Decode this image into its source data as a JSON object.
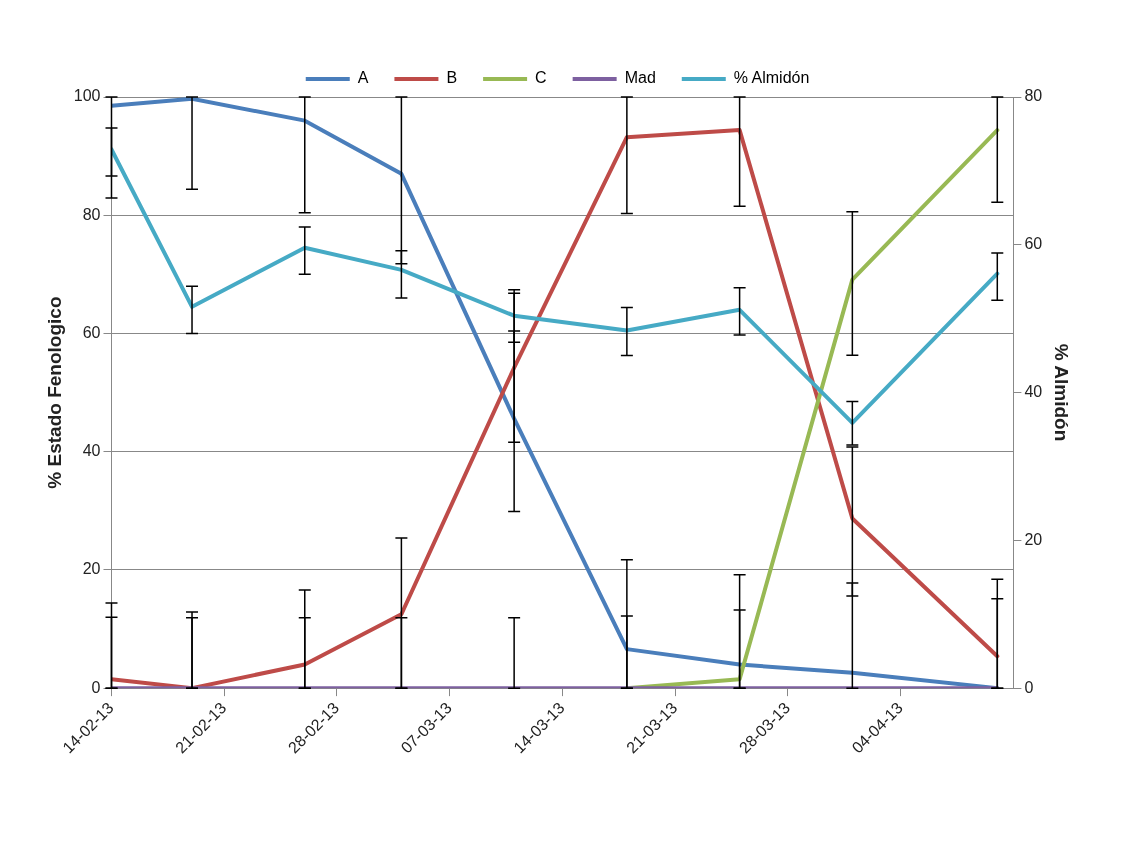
{
  "chart_data": {
    "type": "line",
    "ylabel": "% Estado Fenologico",
    "y2label": "% Almidón",
    "x": [
      "--02-14",
      "--02-19",
      "--02-26",
      "--03-04",
      "--03-11",
      "--03-18",
      "--03-25",
      "--04-01",
      "--04-10"
    ],
    "xlim": [
      "--02-14",
      "--04-11"
    ],
    "xticks": [
      {
        "value": "--02-14",
        "label": "14-02-13"
      },
      {
        "value": "--02-21",
        "label": "21-02-13"
      },
      {
        "value": "--02-28",
        "label": "28-02-13"
      },
      {
        "value": "--03-07",
        "label": "07-03-13"
      },
      {
        "value": "--03-14",
        "label": "14-03-13"
      },
      {
        "value": "--03-21",
        "label": "21-03-13"
      },
      {
        "value": "--03-28",
        "label": "28-03-13"
      },
      {
        "value": "--04-04",
        "label": "04-04-13"
      }
    ],
    "ylim": [
      0,
      100
    ],
    "yticks": [
      0,
      20,
      40,
      60,
      80,
      100
    ],
    "y2lim": [
      0,
      80
    ],
    "y2ticks": [
      0,
      20,
      40,
      60,
      80
    ],
    "grid": "y",
    "legend": "top",
    "marker": "none",
    "line_style": "solid",
    "series": [
      {
        "name": "A",
        "color": "#4a7ebb",
        "values": [
          98.5,
          99.7,
          96,
          87,
          45.6,
          6.6,
          4,
          2.6,
          0
        ],
        "errors": [
          [
            82.9,
            100
          ],
          [
            84.4,
            100
          ],
          [
            80.4,
            100
          ],
          [
            71.8,
            100
          ],
          [
            29.9,
            60.4
          ],
          [
            0,
            21.7
          ],
          [
            0,
            19.2
          ],
          [
            0,
            17.8
          ],
          [
            0,
            15.1
          ]
        ]
      },
      {
        "name": "B",
        "color": "#be4b48",
        "values": [
          1.5,
          0,
          4,
          12.5,
          54.2,
          93.2,
          94.4,
          28.7,
          5.4
        ],
        "errors": [
          [
            0,
            14.4
          ],
          [
            0,
            12.9
          ],
          [
            0,
            16.6
          ],
          [
            0,
            25.4
          ],
          [
            41.6,
            66.8
          ],
          [
            80.3,
            100
          ],
          [
            81.5,
            100
          ],
          [
            15.6,
            40.8
          ],
          [
            0,
            18.4
          ]
        ]
      },
      {
        "name": "C",
        "color": "#98b954",
        "values": [
          null,
          null,
          null,
          null,
          null,
          0,
          1.5,
          69.1,
          94.4
        ],
        "errors": [
          null,
          null,
          null,
          null,
          null,
          [
            0,
            12.2
          ],
          [
            0,
            13.2
          ],
          [
            56.3,
            80.6
          ],
          [
            82.2,
            100
          ]
        ]
      },
      {
        "name": "Mad",
        "color": "#7d60a0",
        "values": [
          0,
          0,
          0,
          0,
          0,
          0,
          0,
          0,
          0
        ],
        "errors": [
          [
            0,
            12
          ],
          [
            0,
            11.9
          ],
          [
            0,
            11.9
          ],
          [
            0,
            11.9
          ],
          [
            0,
            11.9
          ],
          null,
          null,
          null,
          null
        ]
      },
      {
        "name": "% Almidón",
        "color": "#46aac5",
        "axis": "y2",
        "values": [
          72.9,
          51.6,
          59.6,
          56.6,
          50.4,
          48.4,
          51.2,
          35.9,
          56.1
        ],
        "errors": [
          [
            69.3,
            75.8
          ],
          [
            48,
            54.4
          ],
          [
            56,
            62.4
          ],
          [
            52.8,
            59.2
          ],
          [
            46.8,
            53.9
          ],
          [
            45,
            51.5
          ],
          [
            47.8,
            54.2
          ],
          [
            32.9,
            38.8
          ],
          [
            52.5,
            58.9
          ]
        ]
      }
    ]
  }
}
